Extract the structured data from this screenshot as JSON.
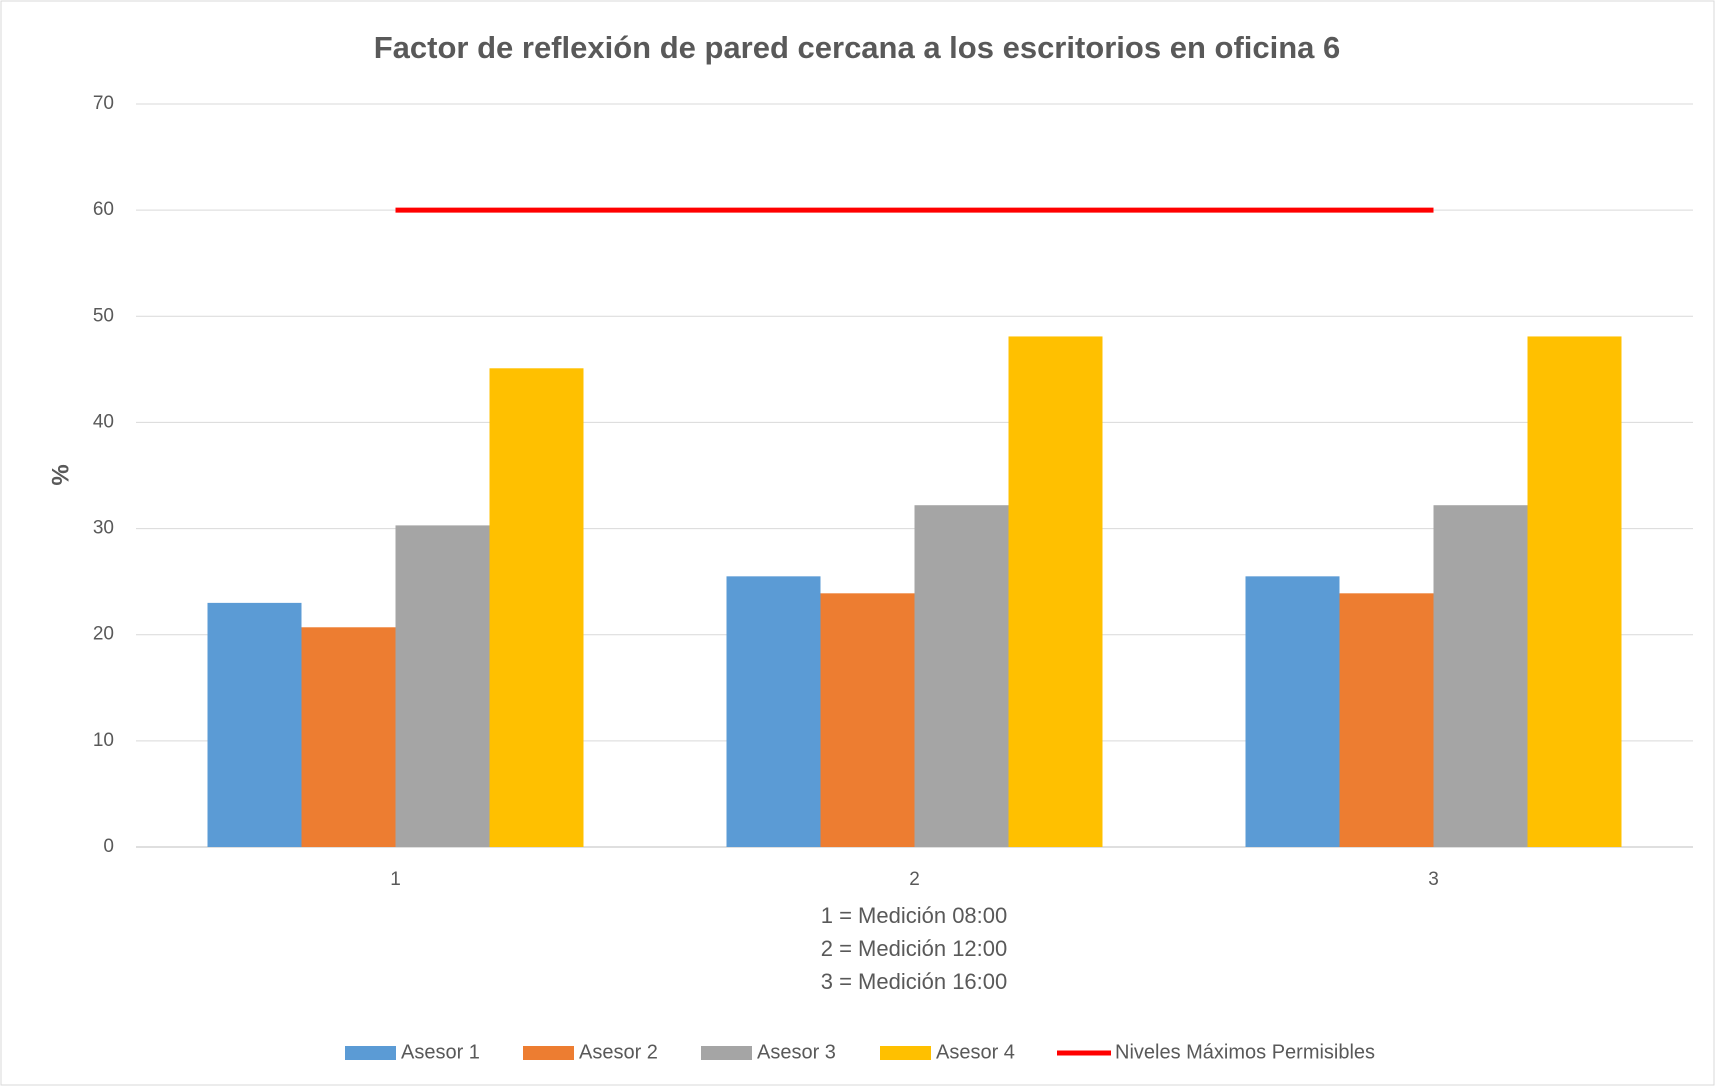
{
  "chart_data": {
    "type": "bar",
    "title": "Factor de reflexión de pared cercana a los escritorios en oficina 6",
    "y_label": "%",
    "x_label": [
      "1 = Medición 08:00",
      "2 = Medición 12:00",
      "3 = Medición 16:00"
    ],
    "categories": [
      "1",
      "2",
      "3"
    ],
    "series": [
      {
        "name": "Asesor 1",
        "color": "#5b9bd5",
        "values": [
          23,
          25.5,
          25.5
        ]
      },
      {
        "name": "Asesor 2",
        "color": "#ed7d31",
        "values": [
          20.7,
          23.9,
          23.9
        ]
      },
      {
        "name": "Asesor 3",
        "color": "#a5a5a5",
        "values": [
          30.3,
          32.2,
          32.2
        ]
      },
      {
        "name": "Asesor 4",
        "color": "#ffc000",
        "values": [
          45.1,
          48.1,
          48.1
        ]
      },
      {
        "name": "Niveles Máximos Permisibles",
        "color": "#ff0000",
        "type": "line",
        "values": [
          60,
          60,
          60
        ]
      }
    ],
    "ylim": [
      0,
      70
    ],
    "yticks": [
      0,
      10,
      20,
      30,
      40,
      50,
      60,
      70
    ],
    "grid": true,
    "legend": "bottom"
  }
}
